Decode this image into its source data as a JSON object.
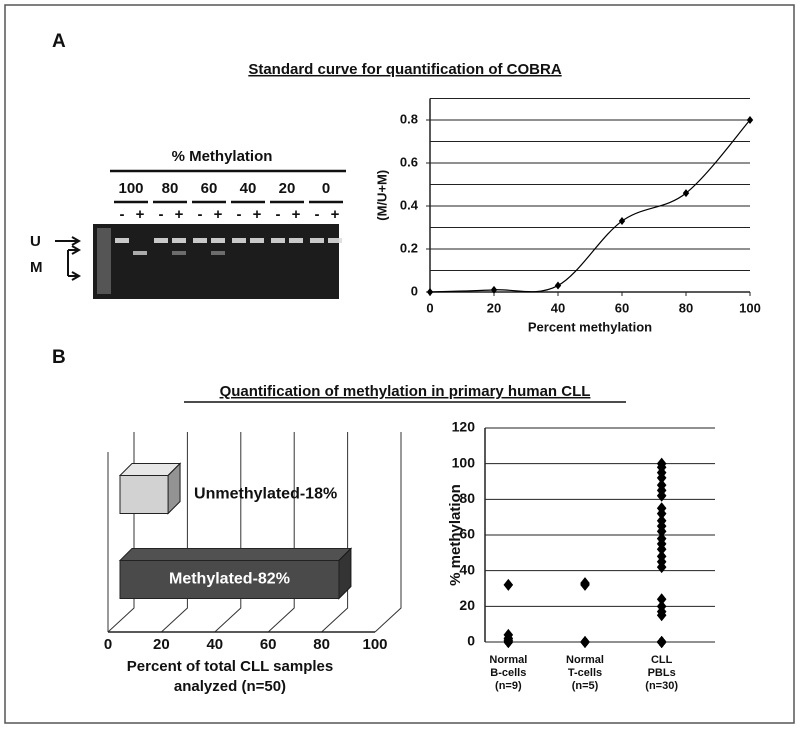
{
  "panel_a": {
    "label": "A",
    "title": "Standard curve for quantification of COBRA",
    "gel": {
      "header": "% Methylation",
      "lanes": [
        "100",
        "80",
        "60",
        "40",
        "20",
        "0"
      ],
      "signs": [
        "-",
        "+"
      ],
      "u": "U",
      "m": "M"
    }
  },
  "panel_b": {
    "label": "B",
    "title": "Quantification of methylation in primary human CLL"
  },
  "chart_data": [
    {
      "type": "line",
      "x": [
        0,
        20,
        40,
        60,
        80,
        100
      ],
      "values": [
        0,
        0.01,
        0.03,
        0.33,
        0.46,
        0.8
      ],
      "xlim": [
        0,
        100
      ],
      "xticks": [
        0,
        20,
        40,
        60,
        80,
        100
      ],
      "ylim": [
        0,
        0.9
      ],
      "yticks": [
        0,
        0.2,
        0.4,
        0.6,
        0.8
      ],
      "ygrid": [
        0.1,
        0.2,
        0.3,
        0.4,
        0.5,
        0.6,
        0.7,
        0.8,
        0.9
      ],
      "xlabel": "Percent methylation",
      "ylabel": "(M/U+M)",
      "color": "#000000",
      "marker": "diamond"
    },
    {
      "type": "bar",
      "orientation": "horizontal",
      "3d": true,
      "categories": [
        "Unmethylated-18%",
        "Methylated-82%"
      ],
      "values": [
        18,
        82
      ],
      "colors": [
        "#d2d2d2",
        "#4a4a4a"
      ],
      "xlim": [
        0,
        100
      ],
      "xticks": [
        0,
        20,
        40,
        60,
        80,
        100
      ],
      "xlabel": [
        "Percent of total CLL samples",
        "analyzed (n=50)"
      ]
    },
    {
      "type": "strip",
      "categories": [
        [
          "Normal",
          "B-cells",
          "(n=9)"
        ],
        [
          "Normal",
          "T-cells",
          "(n=5)"
        ],
        [
          "CLL",
          "PBLs",
          "(n=30)"
        ]
      ],
      "values": [
        [
          32,
          4,
          2,
          1,
          0,
          0,
          0,
          0,
          0
        ],
        [
          33,
          32,
          0,
          0,
          0
        ],
        [
          100,
          98,
          95,
          92,
          88,
          85,
          82,
          75,
          72,
          68,
          65,
          62,
          58,
          55,
          52,
          48,
          45,
          42,
          24,
          20,
          17,
          15,
          0,
          0,
          0,
          0,
          0,
          0,
          0,
          0
        ]
      ],
      "ylim": [
        0,
        120
      ],
      "yticks": [
        0,
        20,
        40,
        60,
        80,
        100,
        120
      ],
      "ylabel": "% methylation",
      "grid": true,
      "color": "#000000",
      "marker": "diamond"
    }
  ]
}
